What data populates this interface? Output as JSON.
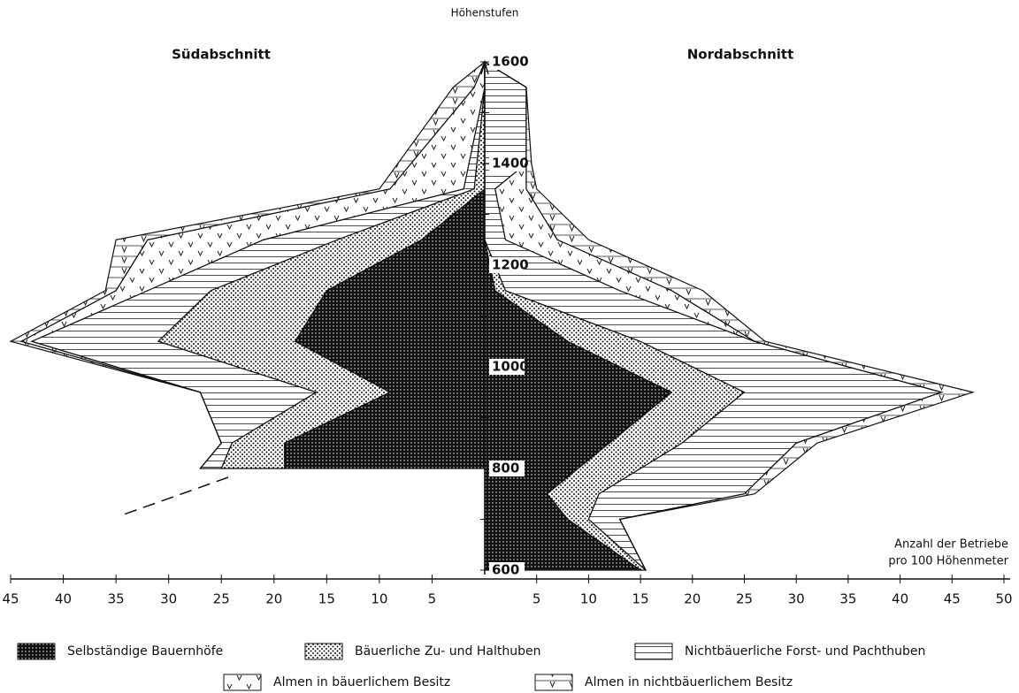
{
  "chart_data": {
    "type": "pyramid",
    "y_label": "Höhenstufen",
    "x_label": [
      "Anzahl der Betriebe",
      "pro 100 Höhenmeter"
    ],
    "ylim": [
      600,
      1600
    ],
    "yticks": [
      600,
      800,
      1000,
      1200,
      1400,
      1600
    ],
    "yticks_minor": [
      700,
      900,
      1100,
      1300,
      1500
    ],
    "left": {
      "title": "Südabschnitt",
      "xlim": [
        0,
        45
      ],
      "xticks": [
        45,
        40,
        35,
        30,
        25,
        20,
        15,
        10,
        5
      ],
      "y": [
        1600,
        1550,
        1350,
        1250,
        1150,
        1050,
        950,
        850,
        800
      ],
      "series": [
        {
          "name": "Selbständige Bauernhöfe",
          "values": [
            0,
            0,
            0,
            6,
            15,
            18,
            9,
            19,
            19
          ]
        },
        {
          "name": "Bäuerliche Zu- und Halthuben",
          "values": [
            0,
            0,
            1,
            8,
            11,
            13,
            7,
            5,
            6
          ]
        },
        {
          "name": "Nichtbäuerliche Forst- und Pachthuben",
          "values": [
            0,
            0,
            1,
            7,
            6,
            12,
            11,
            1,
            2
          ]
        },
        {
          "name": "Almen in bäuerlichem Besitz",
          "values": [
            0,
            1,
            7,
            11,
            3,
            1,
            0,
            0,
            0
          ]
        },
        {
          "name": "Almen in nichtbäuerlichem Besitz",
          "values": [
            0,
            2,
            1,
            3,
            1,
            1,
            0,
            0,
            0
          ]
        }
      ]
    },
    "right": {
      "title": "Nordabschnitt",
      "xlim": [
        0,
        50
      ],
      "xticks": [
        5,
        10,
        15,
        20,
        25,
        30,
        35,
        40,
        45,
        50
      ],
      "y": [
        1600,
        1550,
        1400,
        1350,
        1250,
        1150,
        1050,
        950,
        850,
        750,
        700,
        600
      ],
      "series": [
        {
          "name": "Selbständige Bauernhöfe",
          "values": [
            0,
            0,
            0,
            0,
            0,
            1,
            8,
            18,
            12,
            6,
            8,
            15
          ]
        },
        {
          "name": "Bäuerliche Zu- und Halthuben",
          "values": [
            0,
            0,
            0,
            0,
            0,
            1,
            7,
            7,
            7,
            5,
            2,
            0.5
          ]
        },
        {
          "name": "Nichtbäuerliche Forst- und Pachthuben",
          "values": [
            0,
            4,
            4,
            1,
            2,
            11,
            11,
            19,
            11,
            14,
            3,
            0
          ]
        },
        {
          "name": "Almen in bäuerlichem Besitz",
          "values": [
            0,
            0,
            0,
            3,
            5,
            5,
            0,
            0,
            0,
            0,
            0,
            0
          ]
        },
        {
          "name": "Almen in nichtbäuerlichem Besitz",
          "values": [
            0,
            0,
            0.5,
            1,
            3,
            3,
            1,
            3,
            2,
            1,
            0,
            0
          ]
        }
      ]
    }
  }
}
